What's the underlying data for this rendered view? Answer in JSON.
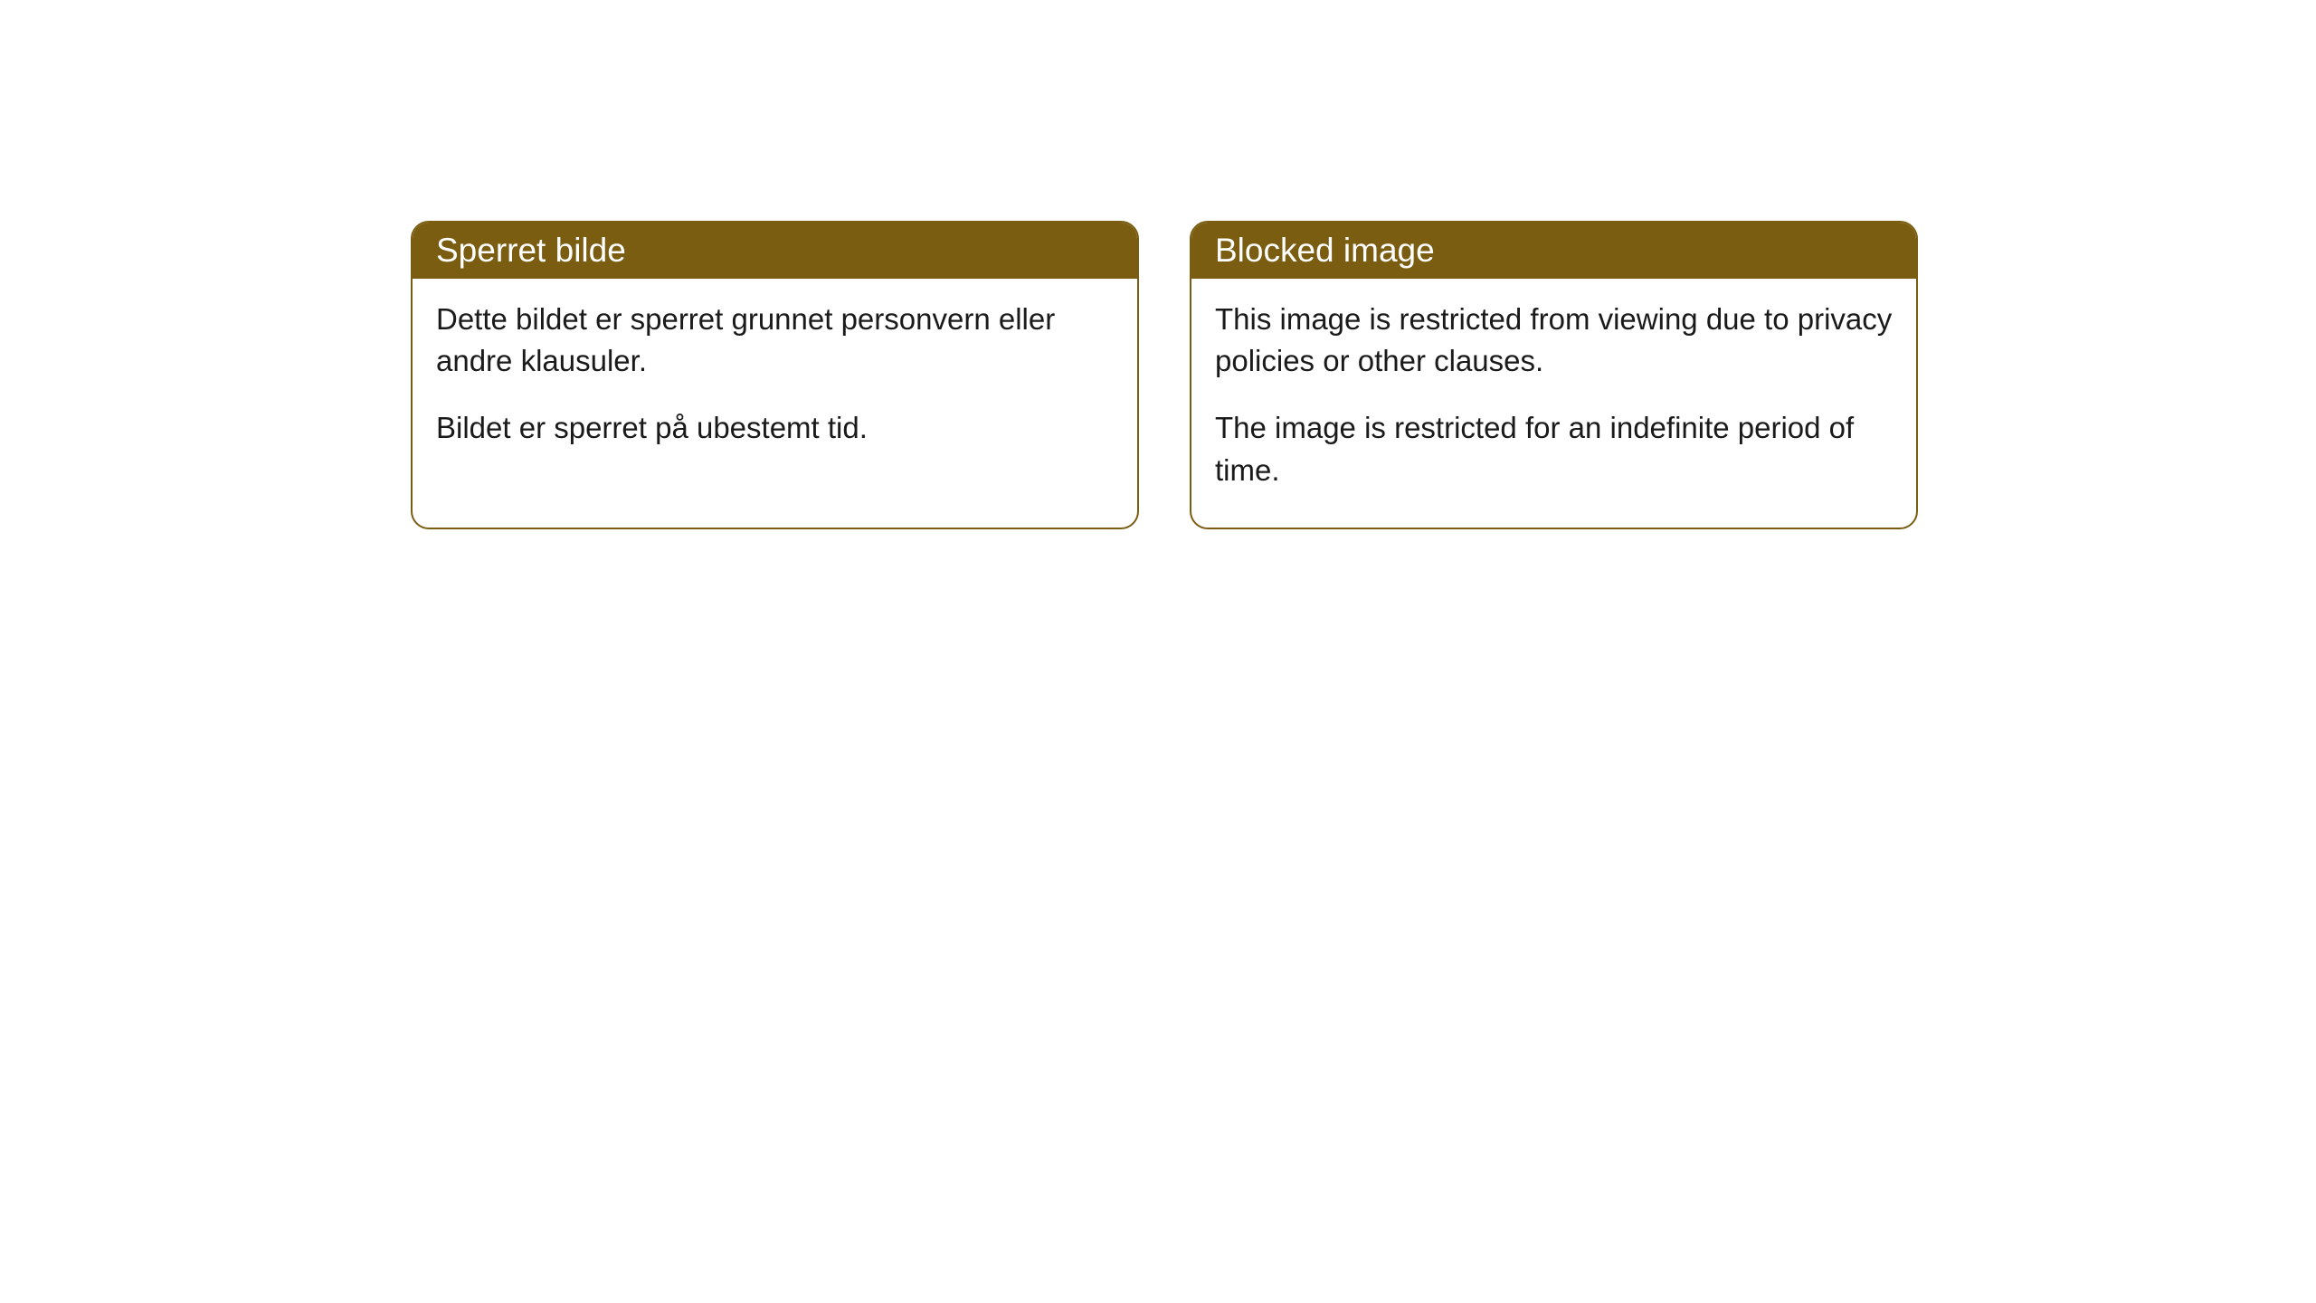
{
  "cards": [
    {
      "title": "Sperret bilde",
      "paragraph1": "Dette bildet er sperret grunnet personvern eller andre klausuler.",
      "paragraph2": "Bildet er sperret på ubestemt tid."
    },
    {
      "title": "Blocked image",
      "paragraph1": "This image is restricted from viewing due to privacy policies or other clauses.",
      "paragraph2": "The image is restricted for an indefinite period of time."
    }
  ],
  "styling": {
    "header_background": "#7b5d11",
    "header_text_color": "#ffffff",
    "border_color": "#7b5d11",
    "body_background": "#ffffff",
    "body_text_color": "#1a1a1a",
    "border_radius": 20,
    "header_fontsize": 37,
    "body_fontsize": 33
  }
}
